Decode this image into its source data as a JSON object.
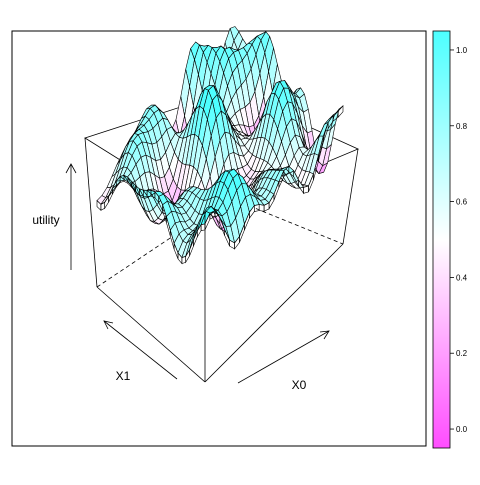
{
  "chart_data": {
    "type": "surface",
    "axes": {
      "x_label": "X0",
      "y_label": "X1",
      "z_label": "utility"
    },
    "colorkey": {
      "ticks": [
        "0.0",
        "0.2",
        "0.4",
        "0.6",
        "0.8",
        "1.0"
      ],
      "tick_values": [
        0.0,
        0.2,
        0.4,
        0.6,
        0.8,
        1.0
      ],
      "range": [
        -0.05,
        1.05
      ],
      "low_color": "#ff4dff",
      "mid_color": "#ffffff",
      "high_color": "#4dffff"
    },
    "grid": false,
    "legend_position": "right"
  }
}
